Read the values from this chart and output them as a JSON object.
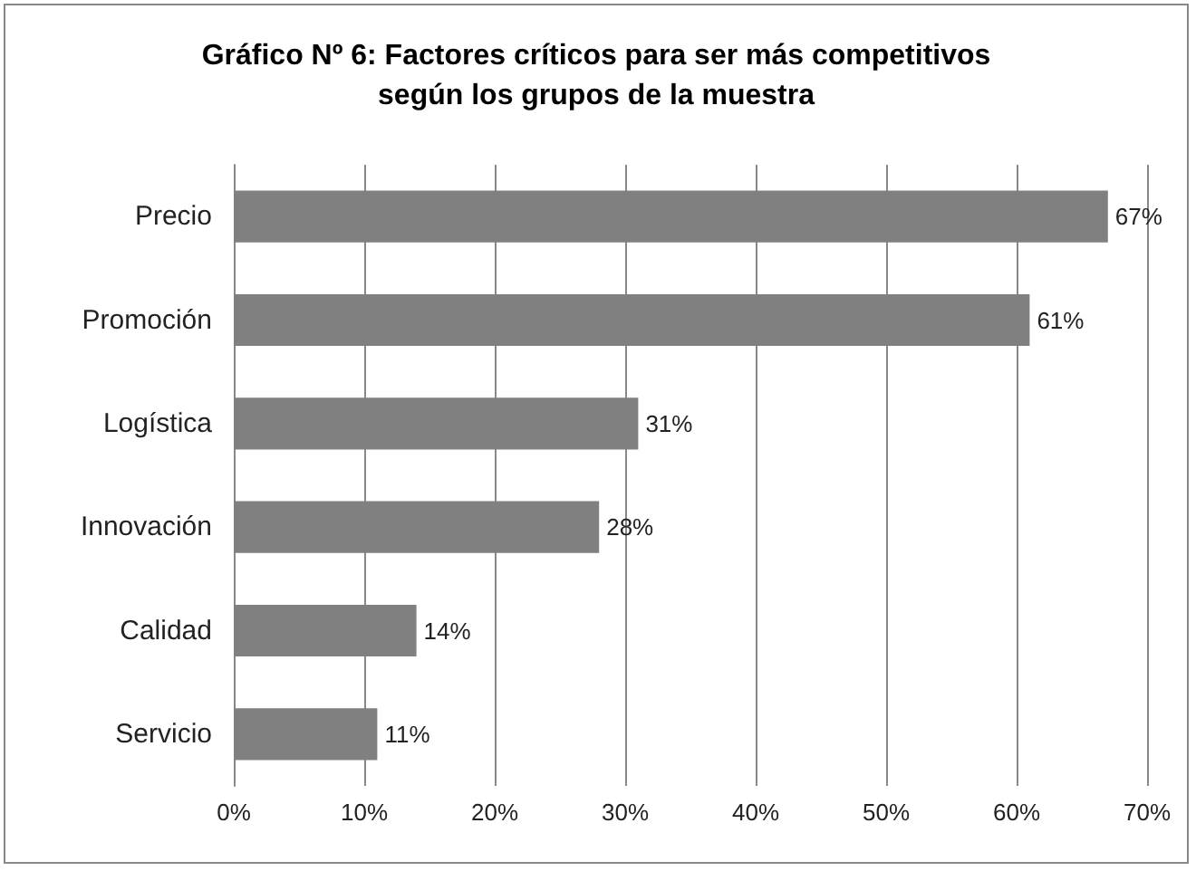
{
  "chart_data": {
    "type": "bar",
    "orientation": "horizontal",
    "title": "Gráfico Nº 6: Factores críticos para ser más competitivos\nsegún los grupos de la muestra",
    "categories": [
      "Precio",
      "Promoción",
      "Logística",
      "Innovación",
      "Calidad",
      "Servicio"
    ],
    "values": [
      67,
      61,
      31,
      28,
      14,
      11
    ],
    "color": "#808080",
    "value_labels": [
      "67%",
      "61%",
      "31%",
      "28%",
      "14%",
      "11%"
    ],
    "xlim": [
      0,
      70
    ],
    "xticks": [
      {
        "value": 0,
        "label": "0%"
      },
      {
        "value": 10,
        "label": "10%"
      },
      {
        "value": 20,
        "label": "20%"
      },
      {
        "value": 30,
        "label": "30%"
      },
      {
        "value": 40,
        "label": "40%"
      },
      {
        "value": 50,
        "label": "50%"
      },
      {
        "value": 60,
        "label": "60%"
      },
      {
        "value": 70,
        "label": "70%"
      }
    ],
    "grid": "x"
  }
}
